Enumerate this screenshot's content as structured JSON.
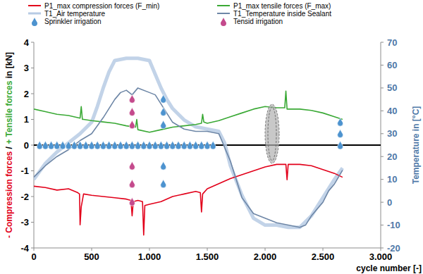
{
  "chart_data": {
    "type": "line",
    "xlabel": "cycle number [-]",
    "ylabel": [
      {
        "text": "- Compression forces",
        "color": "#e2001a"
      },
      {
        "text": " / ",
        "color": "#000000"
      },
      {
        "text": "+ Tensile forces",
        "color": "#3aa935"
      },
      {
        "text": " in [kN]",
        "color": "#000000"
      }
    ],
    "y2label": "Temperature in [°C]",
    "xlim": [
      0,
      3000
    ],
    "xticks": [
      0,
      500,
      {
        "value": 1000,
        "label": "1.000"
      },
      {
        "value": 1500,
        "label": "1.500"
      },
      {
        "value": 2000,
        "label": "2.000"
      },
      {
        "value": 2500,
        "label": "2.500"
      },
      {
        "value": 3000,
        "label": "3.000"
      }
    ],
    "ylim": [
      -4,
      4
    ],
    "yticks": [
      -4,
      -3,
      -2,
      -1,
      0,
      1,
      2,
      3,
      4
    ],
    "y2lim": [
      -20,
      70
    ],
    "y2ticks": [
      -20,
      -10,
      0,
      10,
      20,
      30,
      40,
      50,
      60,
      70
    ],
    "grid": false,
    "legend": "top",
    "series": [
      {
        "name": "P1_max compression forces (F_min)",
        "color": "#e2001a",
        "type": "line",
        "line_style": "solid",
        "axis": "y",
        "x": [
          0,
          100,
          200,
          300,
          380,
          395,
          400,
          410,
          430,
          500,
          600,
          700,
          800,
          840,
          850,
          860,
          900,
          940,
          950,
          960,
          1000,
          1100,
          1200,
          1300,
          1400,
          1440,
          1450,
          1460,
          1500,
          1600,
          1700,
          1800,
          1900,
          2000,
          2100,
          2180,
          2190,
          2200,
          2300,
          2400,
          2500,
          2600,
          2670
        ],
        "values": [
          -1.6,
          -1.65,
          -1.75,
          -1.7,
          -1.85,
          -1.9,
          -3.1,
          -2.4,
          -1.9,
          -1.95,
          -2.0,
          -2.05,
          -2.1,
          -2.15,
          -2.75,
          -2.2,
          -2.15,
          -2.2,
          -3.5,
          -2.35,
          -2.3,
          -2.2,
          -2.0,
          -1.9,
          -1.8,
          -1.85,
          -2.6,
          -1.9,
          -1.7,
          -1.5,
          -1.3,
          -1.15,
          -1.0,
          -0.85,
          -0.75,
          -0.75,
          -1.35,
          -0.75,
          -0.75,
          -0.8,
          -0.95,
          -1.1,
          -1.25
        ]
      },
      {
        "name": "P1_max tensile forces (F_max)",
        "color": "#3aa935",
        "type": "line",
        "line_style": "solid",
        "axis": "y",
        "x": [
          0,
          100,
          200,
          300,
          400,
          410,
          420,
          430,
          500,
          600,
          700,
          800,
          880,
          890,
          900,
          1000,
          1100,
          1200,
          1300,
          1400,
          1450,
          1460,
          1470,
          1500,
          1600,
          1700,
          1800,
          1900,
          2000,
          2100,
          2170,
          2180,
          2190,
          2300,
          2400,
          2500,
          2600,
          2670
        ],
        "values": [
          1.4,
          1.3,
          1.2,
          1.15,
          1.05,
          1.5,
          1.0,
          1.0,
          0.95,
          0.9,
          0.85,
          0.75,
          0.7,
          1.0,
          0.6,
          0.5,
          0.6,
          0.7,
          0.75,
          0.8,
          0.85,
          1.2,
          0.9,
          0.85,
          0.95,
          1.1,
          1.25,
          1.4,
          1.5,
          1.45,
          1.45,
          2.1,
          1.4,
          1.4,
          1.35,
          1.25,
          1.1,
          1.0
        ]
      },
      {
        "name": "T1_Air temperature",
        "color": "#b7cbe4",
        "type": "line",
        "line_style": "thick",
        "axis": "y2",
        "x": [
          0,
          100,
          200,
          300,
          400,
          500,
          550,
          600,
          650,
          700,
          800,
          900,
          1000,
          1050,
          1100,
          1150,
          1200,
          1300,
          1400,
          1500,
          1600,
          1650,
          1700,
          1800,
          1900,
          2000,
          2100,
          2200,
          2300,
          2400,
          2500,
          2600,
          2670
        ],
        "values": [
          10,
          17,
          22,
          26,
          30,
          35,
          42,
          50,
          57,
          62,
          63,
          63,
          62,
          56,
          50,
          45,
          41,
          36,
          33,
          32,
          31,
          26,
          16,
          3,
          -7,
          -10,
          -10,
          -11,
          -11,
          -6,
          2,
          10,
          15
        ]
      },
      {
        "name": "T1_Temperature inside Sealant",
        "color": "#6d86a6",
        "type": "line",
        "line_style": "solid",
        "axis": "y2",
        "x": [
          0,
          100,
          200,
          300,
          400,
          500,
          600,
          700,
          750,
          800,
          850,
          900,
          1000,
          1050,
          1100,
          1200,
          1300,
          1400,
          1500,
          1600,
          1700,
          1800,
          1900,
          2000,
          2100,
          2200,
          2300,
          2350,
          2400,
          2500,
          2550,
          2600,
          2670
        ],
        "values": [
          11,
          16,
          20,
          23,
          27,
          30,
          37,
          45,
          48,
          49,
          47,
          50,
          48,
          47,
          43,
          35,
          32,
          31,
          31,
          30,
          18,
          2,
          -5,
          -7,
          -9,
          -10,
          -11,
          -10,
          -6,
          0,
          5,
          8,
          14
        ]
      },
      {
        "name": "Sprinkler irrigation",
        "color": "#4d93cf",
        "type": "scatter",
        "marker": "drop",
        "axis": "y",
        "x": [
          50,
          100,
          150,
          200,
          250,
          300,
          350,
          400,
          450,
          500,
          550,
          600,
          650,
          700,
          750,
          800,
          850,
          900,
          950,
          1000,
          1050,
          1100,
          1150,
          1200,
          1250,
          1300,
          1350,
          1400,
          1450,
          1500,
          1550,
          1120,
          1120,
          1120,
          1120,
          1120,
          2650,
          2650,
          2650
        ],
        "values": [
          0,
          0,
          0,
          0,
          0,
          0,
          0,
          0,
          0,
          0,
          0,
          0,
          0,
          0,
          0,
          0,
          0,
          0,
          0,
          0,
          0,
          0,
          0,
          0,
          0,
          0,
          0,
          0,
          0,
          0,
          0,
          1.8,
          1.3,
          0.8,
          -0.8,
          -1.5,
          0.9,
          0.45,
          0
        ]
      },
      {
        "name": "Tensid irrigation",
        "color": "#c44a8c",
        "type": "scatter",
        "marker": "drop",
        "axis": "y",
        "x": [
          850,
          850,
          850,
          850,
          850,
          850
        ],
        "values": [
          1.8,
          1.3,
          0.8,
          -0.8,
          -1.5,
          -2.2
        ]
      }
    ]
  }
}
